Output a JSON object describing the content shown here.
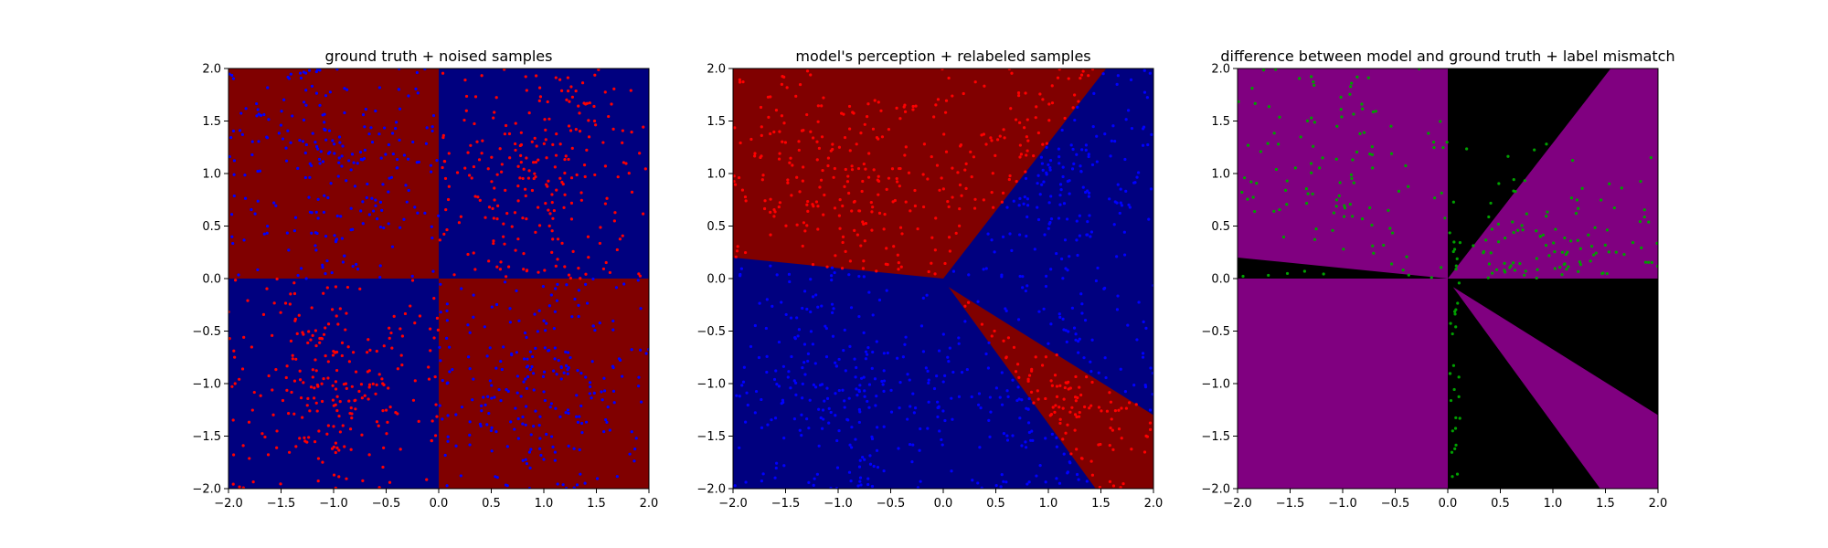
{
  "colors": {
    "red_region": "#800000",
    "blue_region": "#00007f",
    "purple_region": "#800080",
    "black_region": "#000000",
    "red_point": "#ff0000",
    "blue_point": "#0000ff",
    "green_point": "#00a000"
  },
  "chart_data": [
    {
      "type": "heatmap",
      "title": "ground truth + noised samples",
      "xlim": [
        -2.0,
        2.0
      ],
      "ylim": [
        -2.0,
        2.0
      ],
      "xticks": [
        "−2.0",
        "−1.5",
        "−1.0",
        "−0.5",
        "0.0",
        "0.5",
        "1.0",
        "1.5",
        "2.0"
      ],
      "yticks": [
        "−2.0",
        "−1.5",
        "−1.0",
        "−0.5",
        "0.0",
        "0.5",
        "1.0",
        "1.5",
        "2.0"
      ],
      "regions": [
        {
          "label": "red",
          "x": [
            -2.0,
            0.0
          ],
          "y": [
            0.0,
            2.0
          ]
        },
        {
          "label": "blue",
          "x": [
            0.0,
            2.0
          ],
          "y": [
            0.0,
            2.0
          ]
        },
        {
          "label": "blue",
          "x": [
            -2.0,
            0.0
          ],
          "y": [
            -2.0,
            0.0
          ]
        },
        {
          "label": "red",
          "x": [
            0.0,
            2.0
          ],
          "y": [
            -2.0,
            0.0
          ]
        }
      ],
      "scatter": [
        {
          "color": "red",
          "x_range": [
            0.0,
            2.0
          ],
          "y_range": [
            0.0,
            2.0
          ],
          "approx_count": 250
        },
        {
          "color": "red",
          "x_range": [
            -2.0,
            0.0
          ],
          "y_range": [
            -2.0,
            0.0
          ],
          "approx_count": 250
        },
        {
          "color": "blue",
          "x_range": [
            -2.0,
            0.0
          ],
          "y_range": [
            0.0,
            2.0
          ],
          "approx_count": 250
        },
        {
          "color": "blue",
          "x_range": [
            0.0,
            2.0
          ],
          "y_range": [
            -2.0,
            0.0
          ],
          "approx_count": 250
        }
      ]
    },
    {
      "type": "heatmap",
      "title": "model's perception + relabeled samples",
      "xlim": [
        -2.0,
        2.0
      ],
      "ylim": [
        -2.0,
        2.0
      ],
      "xticks": [
        "−2.0",
        "−1.5",
        "−1.0",
        "−0.5",
        "0.0",
        "0.5",
        "1.0",
        "1.5",
        "2.0"
      ],
      "yticks": [
        "−2.0",
        "−1.5",
        "−1.0",
        "−0.5",
        "0.0",
        "0.5",
        "1.0",
        "1.5",
        "2.0"
      ],
      "regions": [
        {
          "label": "red",
          "polygon": [
            [
              -2.0,
              0.2
            ],
            [
              0.0,
              0.0
            ],
            [
              1.55,
              2.0
            ],
            [
              -2.0,
              2.0
            ]
          ]
        },
        {
          "label": "red",
          "polygon": [
            [
              0.05,
              -0.08
            ],
            [
              2.0,
              -1.3
            ],
            [
              2.0,
              -2.0
            ],
            [
              1.45,
              -2.0
            ]
          ]
        },
        {
          "label": "blue",
          "background": true
        }
      ],
      "scatter": [
        {
          "color": "red",
          "note": "points inside red regions",
          "approx_count": 500
        },
        {
          "color": "blue",
          "note": "points inside blue regions",
          "approx_count": 500
        }
      ]
    },
    {
      "type": "heatmap",
      "title": "difference between model and ground truth + label mismatch",
      "xlim": [
        -2.0,
        2.0
      ],
      "ylim": [
        -2.0,
        2.0
      ],
      "xticks": [
        "−2.0",
        "−1.5",
        "−1.0",
        "−0.5",
        "0.0",
        "0.5",
        "1.0",
        "1.5",
        "2.0"
      ],
      "yticks": [
        "−2.0",
        "−1.5",
        "−1.0",
        "−0.5",
        "0.0",
        "0.5",
        "1.0",
        "1.5",
        "2.0"
      ],
      "regions": [
        {
          "label": "purple",
          "polygon": [
            [
              -2.0,
              0.0
            ],
            [
              0.0,
              0.0
            ],
            [
              0.0,
              2.0
            ],
            [
              -2.0,
              2.0
            ]
          ]
        },
        {
          "label": "purple",
          "polygon": [
            [
              -2.0,
              -2.0
            ],
            [
              0.0,
              -2.0
            ],
            [
              0.0,
              0.0
            ],
            [
              -2.0,
              0.0
            ]
          ]
        },
        {
          "label": "purple",
          "polygon": [
            [
              0.0,
              0.0
            ],
            [
              2.0,
              0.0
            ],
            [
              2.0,
              2.0
            ],
            [
              1.55,
              2.0
            ]
          ]
        },
        {
          "label": "purple",
          "polygon": [
            [
              0.05,
              -0.08
            ],
            [
              2.0,
              -1.3
            ],
            [
              2.0,
              -2.0
            ],
            [
              1.45,
              -2.0
            ]
          ]
        },
        {
          "label": "black",
          "polygon": [
            [
              -2.0,
              0.0
            ],
            [
              -2.0,
              0.2
            ],
            [
              0.0,
              0.0
            ]
          ]
        },
        {
          "label": "black",
          "background": true
        }
      ],
      "scatter": [
        {
          "color": "green",
          "note": "label mismatch points",
          "approx_count": 250
        }
      ]
    }
  ]
}
